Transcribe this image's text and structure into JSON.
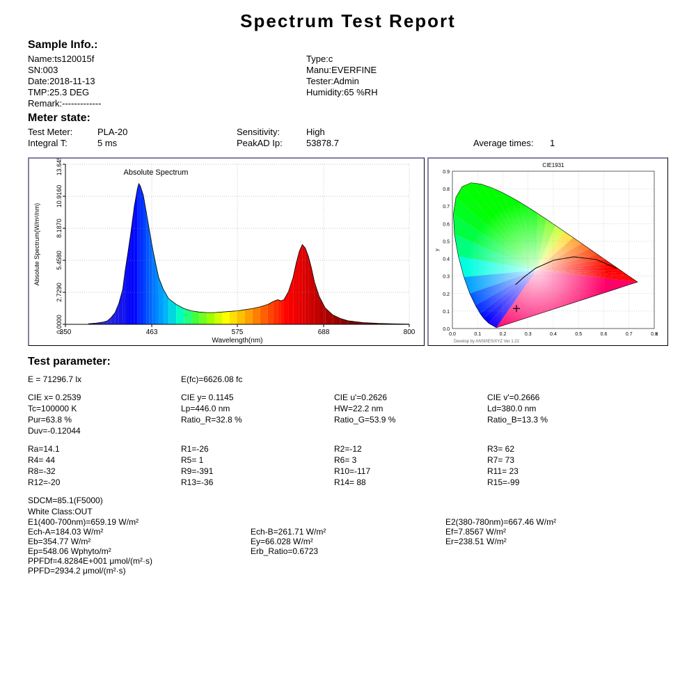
{
  "title": "Spectrum  Test Report",
  "sample_info_header": "Sample Info.:",
  "sample": {
    "name": "Name:ts120015f",
    "sn": "SN:003",
    "date": "Date:2018-11-13",
    "tmp": "TMP:25.3 DEG",
    "remark": "Remark:-------------",
    "type": "Type:c",
    "manu": "Manu:EVERFINE",
    "tester": "Tester:Admin",
    "humidity": "Humidity:65 %RH"
  },
  "meter_state_header": "Meter state:",
  "meter": {
    "test_meter_label": "Test Meter:",
    "test_meter_val": "PLA-20",
    "integral_t_label": "Integral T:",
    "integral_t_val": "5 ms",
    "sensitivity_label": "Sensitivity:",
    "sensitivity_val": "High",
    "peakad_label": "PeakAD Ip:",
    "peakad_val": "53878.7",
    "avg_label": "Average times:",
    "avg_val": "1"
  },
  "spectrum_chart": {
    "title": "Absolute Spectrum",
    "xlabel": "Wavelength(nm)",
    "ylabel": "Absolute Spectrum(W/m²/nm)",
    "x_ticks": [
      "350",
      "463",
      "575",
      "688",
      "800"
    ],
    "y_ticks": [
      "0.0000",
      "2.7290",
      "5.4580",
      "8.1870",
      "10.9160",
      "13.6450"
    ],
    "xlim": [
      350,
      800
    ],
    "ylim": [
      0,
      13.645
    ],
    "curve": [
      [
        380,
        0.05
      ],
      [
        390,
        0.1
      ],
      [
        400,
        0.2
      ],
      [
        405,
        0.3
      ],
      [
        410,
        0.6
      ],
      [
        415,
        1.0
      ],
      [
        420,
        1.8
      ],
      [
        425,
        3.0
      ],
      [
        428,
        4.5
      ],
      [
        432,
        6.2
      ],
      [
        436,
        8.0
      ],
      [
        440,
        10.0
      ],
      [
        444,
        11.5
      ],
      [
        446,
        12.0
      ],
      [
        448,
        11.8
      ],
      [
        452,
        11.0
      ],
      [
        456,
        9.5
      ],
      [
        460,
        8.0
      ],
      [
        464,
        6.5
      ],
      [
        468,
        5.2
      ],
      [
        472,
        4.0
      ],
      [
        478,
        3.0
      ],
      [
        485,
        2.2
      ],
      [
        495,
        1.7
      ],
      [
        505,
        1.35
      ],
      [
        515,
        1.15
      ],
      [
        525,
        1.05
      ],
      [
        535,
        1.0
      ],
      [
        545,
        1.0
      ],
      [
        555,
        1.05
      ],
      [
        565,
        1.1
      ],
      [
        575,
        1.15
      ],
      [
        585,
        1.25
      ],
      [
        595,
        1.35
      ],
      [
        605,
        1.5
      ],
      [
        615,
        1.7
      ],
      [
        622,
        1.95
      ],
      [
        628,
        2.1
      ],
      [
        632,
        2.0
      ],
      [
        636,
        2.1
      ],
      [
        642,
        2.8
      ],
      [
        648,
        4.0
      ],
      [
        652,
        5.2
      ],
      [
        656,
        6.2
      ],
      [
        660,
        6.8
      ],
      [
        664,
        6.5
      ],
      [
        668,
        5.8
      ],
      [
        672,
        4.8
      ],
      [
        676,
        3.6
      ],
      [
        682,
        2.4
      ],
      [
        690,
        1.4
      ],
      [
        700,
        0.8
      ],
      [
        710,
        0.5
      ],
      [
        720,
        0.3
      ],
      [
        740,
        0.15
      ],
      [
        760,
        0.08
      ],
      [
        780,
        0.04
      ],
      [
        800,
        0.02
      ]
    ],
    "colors": {
      "380": "#4b0082",
      "400": "#3030d0",
      "420": "#1818e8",
      "440": "#0000ff",
      "460": "#0060ff",
      "480": "#00b0ff",
      "500": "#00ffc0",
      "520": "#40ff40",
      "540": "#a0ff00",
      "560": "#ffff00",
      "580": "#ffc000",
      "600": "#ff8000",
      "620": "#ff4000",
      "640": "#ff0000",
      "660": "#e00000",
      "680": "#c00000",
      "700": "#a00000",
      "720": "#8b0000",
      "740": "#700000",
      "760": "#600000",
      "780": "#500000"
    }
  },
  "cie_chart": {
    "title": "CIE1931",
    "x_ticks": [
      "0.0",
      "0.1",
      "0.2",
      "0.3",
      "0.4",
      "0.5",
      "0.6",
      "0.7",
      "0.8"
    ],
    "y_ticks": [
      "0.0",
      "0.1",
      "0.2",
      "0.3",
      "0.4",
      "0.5",
      "0.6",
      "0.7",
      "0.8",
      "0.9"
    ],
    "point_x": 0.2539,
    "point_y": 0.1145
  },
  "test_param_header": "Test parameter:",
  "params": {
    "r0c0": "E =  71296.7 lx",
    "r0c1": "E(fc)=6626.08 fc",
    "r1c0": "CIE x= 0.2539",
    "r1c1": "CIE y= 0.1145",
    "r1c2": "CIE u'=0.2626",
    "r1c3": "CIE v'=0.2666",
    "r2c0": "Tc=100000 K",
    "r2c1": "Lp=446.0 nm",
    "r2c2": "HW=22.2 nm",
    "r2c3": "Ld=380.0 nm",
    "r3c0": "Pur=63.8 %",
    "r3c1": "Ratio_R=32.8 %",
    "r3c2": "Ratio_G=53.9 %",
    "r3c3": "Ratio_B=13.3 %",
    "r4c0": "Duv=-0.12044",
    "r5c0": "Ra=14.1",
    "r5c1": "R1=-26",
    "r5c2": "R2=-12",
    "r5c3": "R3= 62",
    "r6c0": "R4= 44",
    "r6c1": "R5=  1",
    "r6c2": "R6=  3",
    "r6c3": "R7= 73",
    "r7c0": "R8=-32",
    "r7c1": "R9=-391",
    "r7c2": "R10=-117",
    "r7c3": "R11= 23",
    "r8c0": "R12=-20",
    "r8c1": "R13=-36",
    "r8c2": "R14= 88",
    "r8c3": "R15=-99",
    "r9c0": "SDCM=85.1(F5000)",
    "r10c0": "White Class:OUT",
    "r11c0": "E1(400-700nm)=659.19 W/m²",
    "r11c2": "E2(380-780nm)=667.46 W/m²",
    "r12c0": "Ech-A=184.03 W/m²",
    "r12c1": "Ech-B=261.71 W/m²",
    "r12c2": "Ef=7.8567 W/m²",
    "r13c0": "Eb=354.77 W/m²",
    "r13c1": "Ey=66.028 W/m²",
    "r13c2": "Er=238.51 W/m²",
    "r14c0": "Ep=548.06 Wphyto/m²",
    "r14c1": "Erb_Ratio=0.6723",
    "r15c0": "PPFDf=4.8284E+001 μmol/(m²·s)",
    "r16c0": "PPFD=2934.2 μmol/(m²·s)"
  }
}
